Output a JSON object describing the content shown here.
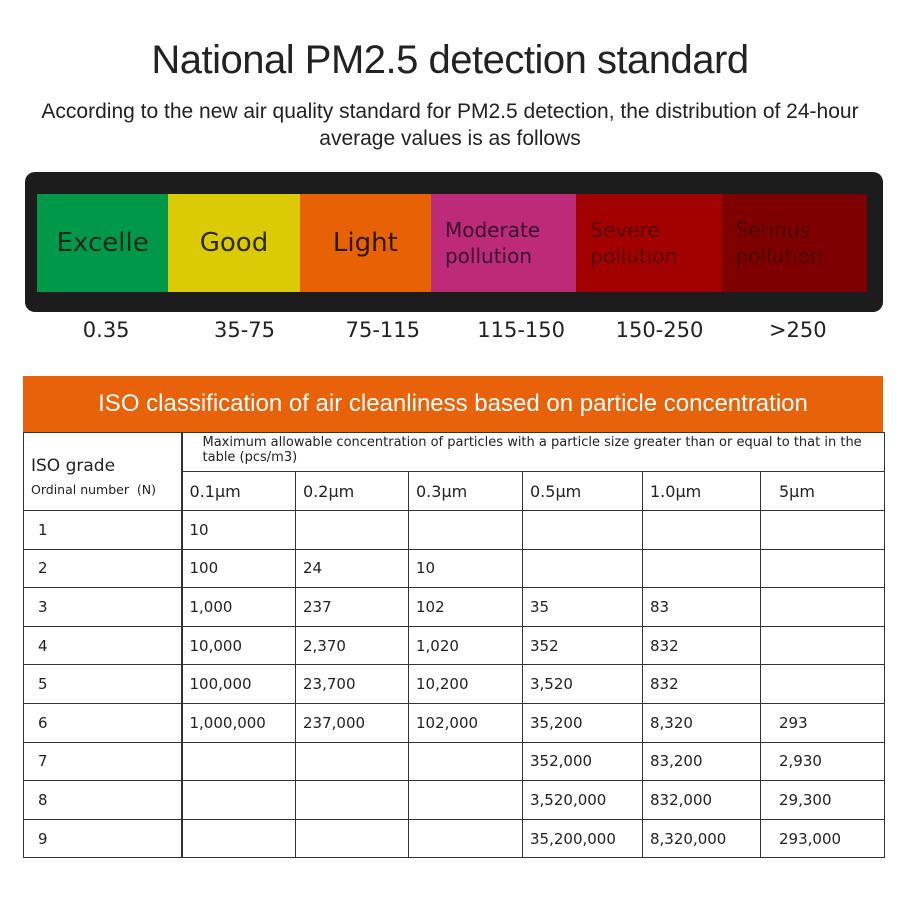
{
  "header": {
    "title": "National PM2.5 detection standard",
    "subtitle": "According to the new air quality standard for PM2.5 detection, the distribution of 24-hour average values is as follows"
  },
  "pm25_scale": {
    "segments": [
      {
        "label": "Excelle",
        "range": "0.35",
        "color": "#00994a",
        "text_color": "#1a2a1a"
      },
      {
        "label": "Good",
        "range": "35-75",
        "color": "#dbcb05",
        "text_color": "#2a2a10"
      },
      {
        "label": "Light",
        "range": "75-115",
        "color": "#e86205",
        "text_color": "#2a1a10"
      },
      {
        "label": "Moderate pollution",
        "range": "115-150",
        "color": "#bc2a78",
        "text_color": "#3a1030"
      },
      {
        "label": "Severe pollution",
        "range": "150-250",
        "color": "#a30000",
        "text_color": "#5a0808"
      },
      {
        "label": "Serious pollution",
        "range": ">250",
        "color": "#7e0000",
        "text_color": "#4e0606"
      }
    ]
  },
  "iso_table": {
    "title": "ISO classification of air cleanliness based on particle concentration",
    "grade_header": "ISO grade",
    "grade_subheader": "Ordinal number  (N)",
    "description": "Maximum allowable concentration of particles with a particle size greater than or equal to that in the table (pcs/m3)",
    "columns": [
      "0.1μm",
      "0.2μm",
      "0.3μm",
      "0.5μm",
      "1.0μm",
      "5μm"
    ],
    "rows": [
      {
        "grade": "1",
        "values": [
          "10",
          "",
          "",
          "",
          "",
          ""
        ]
      },
      {
        "grade": "2",
        "values": [
          "100",
          "24",
          "10",
          "",
          "",
          ""
        ]
      },
      {
        "grade": "3",
        "values": [
          "1,000",
          "237",
          "102",
          "35",
          "83",
          ""
        ]
      },
      {
        "grade": "4",
        "values": [
          "10,000",
          "2,370",
          "1,020",
          "352",
          "832",
          ""
        ]
      },
      {
        "grade": "5",
        "values": [
          "100,000",
          "23,700",
          "10,200",
          "3,520",
          "832",
          ""
        ]
      },
      {
        "grade": "6",
        "values": [
          "1,000,000",
          "237,000",
          "102,000",
          "35,200",
          "8,320",
          "293"
        ]
      },
      {
        "grade": "7",
        "values": [
          "",
          "",
          "",
          "352,000",
          "83,200",
          "2,930"
        ]
      },
      {
        "grade": "8",
        "values": [
          "",
          "",
          "",
          "3,520,000",
          "832,000",
          "29,300"
        ]
      },
      {
        "grade": "9",
        "values": [
          "",
          "",
          "",
          "35,200,000",
          "8,320,000",
          "293,000"
        ]
      }
    ]
  },
  "colors": {
    "banner": "#e8620a",
    "frame": "#1c1c1c"
  }
}
